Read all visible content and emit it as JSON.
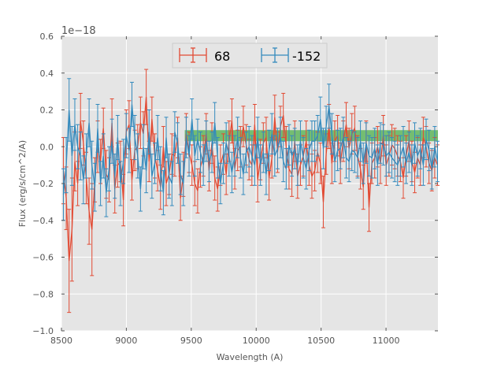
{
  "chart_data": {
    "type": "line",
    "subtype": "errorbar",
    "title": "",
    "xlabel": "Wavelength (A)",
    "ylabel": "Flux (erg/s/cm^2/A)",
    "offset_label": "1e−18",
    "xlim": [
      8500,
      11400
    ],
    "ylim": [
      -1.0,
      0.6
    ],
    "x_ticks": [
      8500,
      9000,
      9500,
      10000,
      10500,
      11000
    ],
    "x_tick_labels": [
      "8500",
      "9000",
      "9500",
      "10000",
      "10500",
      "11000"
    ],
    "y_ticks": [
      -1.0,
      -0.8,
      -0.6,
      -0.4,
      -0.2,
      0.0,
      0.2,
      0.4,
      0.6
    ],
    "y_tick_labels": [
      "−1.0",
      "−0.8",
      "−0.6",
      "−0.4",
      "−0.2",
      "0.0",
      "0.2",
      "0.4",
      "0.6"
    ],
    "grid": true,
    "background_color": "#e5e5e5",
    "legend": {
      "placement": "top-center",
      "columns": 2
    },
    "band": {
      "x_range": [
        9450,
        11400
      ],
      "y_range": [
        0.03,
        0.09
      ],
      "color": "#4daf4a"
    },
    "x_start": 8515,
    "x_step": 22,
    "series": [
      {
        "name": "68",
        "color": "#e24a33",
        "values": [
          -0.13,
          -0.28,
          -0.62,
          -0.45,
          -0.08,
          -0.2,
          0.14,
          0.02,
          -0.17,
          -0.35,
          -0.45,
          -0.18,
          0.0,
          -0.08,
          0.1,
          -0.15,
          -0.18,
          0.13,
          -0.23,
          -0.1,
          -0.08,
          -0.29,
          0.08,
          0.12,
          -0.18,
          -0.02,
          0.0,
          0.13,
          0.07,
          0.27,
          -0.08,
          0.15,
          -0.05,
          -0.13,
          -0.22,
          0.0,
          -0.2,
          -0.15,
          -0.04,
          -0.05,
          0.05,
          -0.28,
          -0.15,
          0.07,
          -0.03,
          -0.1,
          -0.2,
          -0.24,
          -0.11,
          -0.05,
          0.07,
          -0.13,
          0.02,
          -0.17,
          -0.23,
          -0.1,
          -0.04,
          -0.15,
          0.03,
          0.14,
          -0.12,
          -0.02,
          0.0,
          0.11,
          0.01,
          -0.07,
          -0.1,
          0.12,
          -0.18,
          -0.07,
          0.02,
          0.05,
          -0.17,
          -0.06,
          0.16,
          -0.03,
          0.11,
          0.17,
          0.0,
          -0.12,
          -0.15,
          0.03,
          -0.16,
          -0.1,
          -0.05,
          0.03,
          -0.1,
          -0.16,
          -0.13,
          -0.03,
          -0.09,
          -0.3,
          -0.04,
          0.11,
          -0.09,
          0.03,
          0.06,
          -0.09,
          0.03,
          0.12,
          -0.01,
          0.07,
          0.1,
          -0.05,
          -0.12,
          -0.22,
          0.03,
          -0.33,
          -0.09,
          -0.06,
          0.0,
          -0.09,
          0.06,
          -0.1,
          -0.05,
          0.01,
          -0.01,
          -0.05,
          -0.08,
          -0.17,
          -0.05,
          0.03,
          -0.08,
          -0.14,
          -0.06,
          -0.1,
          0.05,
          0.0,
          -0.09,
          -0.13,
          -0.06,
          -0.1
        ],
        "errors": [
          0.18,
          0.17,
          0.28,
          0.28,
          0.16,
          0.12,
          0.15,
          0.12,
          0.14,
          0.18,
          0.25,
          0.12,
          0.14,
          0.12,
          0.11,
          0.13,
          0.12,
          0.13,
          0.13,
          0.12,
          0.11,
          0.14,
          0.12,
          0.13,
          0.11,
          0.11,
          0.12,
          0.14,
          0.12,
          0.15,
          0.11,
          0.12,
          0.12,
          0.11,
          0.12,
          0.11,
          0.12,
          0.11,
          0.11,
          0.11,
          0.11,
          0.12,
          0.12,
          0.11,
          0.11,
          0.11,
          0.12,
          0.12,
          0.11,
          0.11,
          0.11,
          0.11,
          0.11,
          0.12,
          0.12,
          0.11,
          0.11,
          0.11,
          0.11,
          0.12,
          0.11,
          0.11,
          0.11,
          0.11,
          0.11,
          0.11,
          0.11,
          0.11,
          0.12,
          0.11,
          0.11,
          0.11,
          0.12,
          0.11,
          0.12,
          0.11,
          0.11,
          0.12,
          0.11,
          0.11,
          0.12,
          0.11,
          0.12,
          0.11,
          0.11,
          0.11,
          0.11,
          0.12,
          0.11,
          0.11,
          0.11,
          0.14,
          0.11,
          0.12,
          0.11,
          0.11,
          0.11,
          0.11,
          0.11,
          0.12,
          0.11,
          0.11,
          0.12,
          0.11,
          0.11,
          0.12,
          0.11,
          0.13,
          0.11,
          0.11,
          0.11,
          0.11,
          0.11,
          0.11,
          0.11,
          0.11,
          0.11,
          0.11,
          0.11,
          0.11,
          0.11,
          0.11,
          0.11,
          0.11,
          0.11,
          0.11,
          0.11,
          0.11,
          0.11,
          0.11,
          0.11,
          0.11
        ]
      },
      {
        "name": "-152",
        "color": "#348abd",
        "values": [
          -0.26,
          -0.1,
          0.2,
          -0.05,
          0.12,
          0.0,
          -0.05,
          -0.18,
          -0.05,
          0.13,
          -0.1,
          -0.22,
          0.1,
          -0.2,
          -0.05,
          -0.25,
          -0.12,
          0.03,
          -0.16,
          0.05,
          -0.2,
          -0.08,
          0.06,
          -0.02,
          0.23,
          0.05,
          -0.05,
          -0.23,
          0.0,
          -0.13,
          0.08,
          -0.16,
          -0.09,
          0.05,
          -0.12,
          -0.25,
          0.05,
          -0.16,
          -0.2,
          0.08,
          0.02,
          -0.15,
          -0.2,
          0.05,
          -0.05,
          0.15,
          -0.05,
          0.04,
          -0.03,
          -0.1,
          0.03,
          -0.08,
          -0.03,
          0.13,
          -0.06,
          -0.2,
          -0.09,
          0.02,
          -0.05,
          -0.14,
          -0.05,
          0.05,
          -0.06,
          -0.15,
          -0.03,
          0.0,
          -0.05,
          -0.1,
          0.05,
          -0.1,
          -0.03,
          -0.15,
          -0.02,
          0.07,
          -0.05,
          -0.01,
          0.05,
          -0.08,
          -0.12,
          0.01,
          -0.05,
          -0.01,
          -0.1,
          0.03,
          -0.06,
          -0.12,
          -0.02,
          0.03,
          0.03,
          0.06,
          0.15,
          -0.01,
          0.11,
          0.22,
          0.07,
          -0.08,
          -0.02,
          -0.01,
          0.05,
          -0.06,
          -0.08,
          -0.02,
          -0.03,
          -0.06,
          0.03,
          -0.09,
          0.02,
          -0.05,
          -0.06,
          -0.01,
          -0.1,
          0.02,
          0.01,
          -0.05,
          -0.03,
          -0.06,
          -0.08,
          -0.1,
          -0.05,
          0.0,
          -0.09,
          -0.03,
          -0.1,
          0.02,
          -0.05,
          -0.01,
          -0.1,
          0.04,
          -0.02,
          -0.12,
          0.0,
          -0.08
        ],
        "errors": [
          0.14,
          0.15,
          0.17,
          0.16,
          0.14,
          0.12,
          0.13,
          0.13,
          0.12,
          0.13,
          0.13,
          0.13,
          0.13,
          0.12,
          0.12,
          0.13,
          0.12,
          0.12,
          0.12,
          0.12,
          0.12,
          0.12,
          0.12,
          0.12,
          0.12,
          0.12,
          0.12,
          0.12,
          0.12,
          0.12,
          0.12,
          0.12,
          0.11,
          0.12,
          0.12,
          0.12,
          0.11,
          0.12,
          0.12,
          0.11,
          0.11,
          0.11,
          0.12,
          0.11,
          0.11,
          0.11,
          0.11,
          0.11,
          0.11,
          0.11,
          0.11,
          0.11,
          0.11,
          0.11,
          0.11,
          0.11,
          0.11,
          0.11,
          0.11,
          0.11,
          0.11,
          0.11,
          0.11,
          0.11,
          0.11,
          0.11,
          0.11,
          0.11,
          0.11,
          0.11,
          0.11,
          0.11,
          0.11,
          0.11,
          0.11,
          0.11,
          0.11,
          0.11,
          0.11,
          0.11,
          0.11,
          0.11,
          0.11,
          0.11,
          0.11,
          0.11,
          0.11,
          0.11,
          0.11,
          0.11,
          0.12,
          0.11,
          0.11,
          0.12,
          0.11,
          0.11,
          0.11,
          0.11,
          0.11,
          0.11,
          0.11,
          0.11,
          0.11,
          0.11,
          0.11,
          0.11,
          0.11,
          0.11,
          0.11,
          0.11,
          0.11,
          0.11,
          0.11,
          0.11,
          0.11,
          0.11,
          0.11,
          0.11,
          0.11,
          0.11,
          0.11,
          0.11,
          0.11,
          0.11,
          0.11,
          0.11,
          0.11,
          0.11,
          0.11,
          0.11,
          0.11,
          0.11
        ]
      }
    ]
  }
}
